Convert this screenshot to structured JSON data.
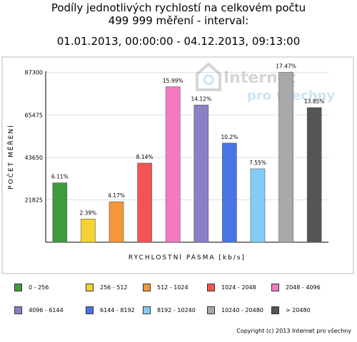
{
  "title_line1": "Podíly jednotlivých rychlostí na celkovém počtu",
  "title_line2": "499 999 měření - interval:",
  "title_line3": "01.01.2013, 00:00:00 - 04.12.2013, 09:13:00",
  "watermark_line1": "Internet",
  "watermark_line2": "pro všechny",
  "footer": "Copyright (c) 2013 Internet pro všechny",
  "chart_data": {
    "type": "bar",
    "xlabel": "RYCHLOSTNÍ PÁSMA [kb/s]",
    "ylabel": "POČET MĚŘENÍ",
    "ylim": [
      0,
      96000
    ],
    "yticks": [
      21825,
      43650,
      65475,
      87300
    ],
    "grid": true,
    "legend_position": "bottom",
    "categories": [
      "0 - 256",
      "256 - 512",
      "512 - 1024",
      "1024 - 2048",
      "2048 - 4096",
      "4096 - 6144",
      "6144 - 8192",
      "8192 - 10240",
      "10240 - 20480",
      "> 20480"
    ],
    "values": [
      30550,
      11950,
      20850,
      40700,
      79950,
      70600,
      51000,
      37750,
      87350,
      69250
    ],
    "labels": [
      "6.11%",
      "2.39%",
      "4.17%",
      "8.14%",
      "15.99%",
      "14.12%",
      "10.2%",
      "7.55%",
      "17.47%",
      "13.85%"
    ],
    "colors": [
      "#3d9a3d",
      "#f5d132",
      "#f59638",
      "#f55454",
      "#f57ac2",
      "#8a80c6",
      "#4a74e6",
      "#82cdf5",
      "#a9a9a9",
      "#555555"
    ]
  }
}
